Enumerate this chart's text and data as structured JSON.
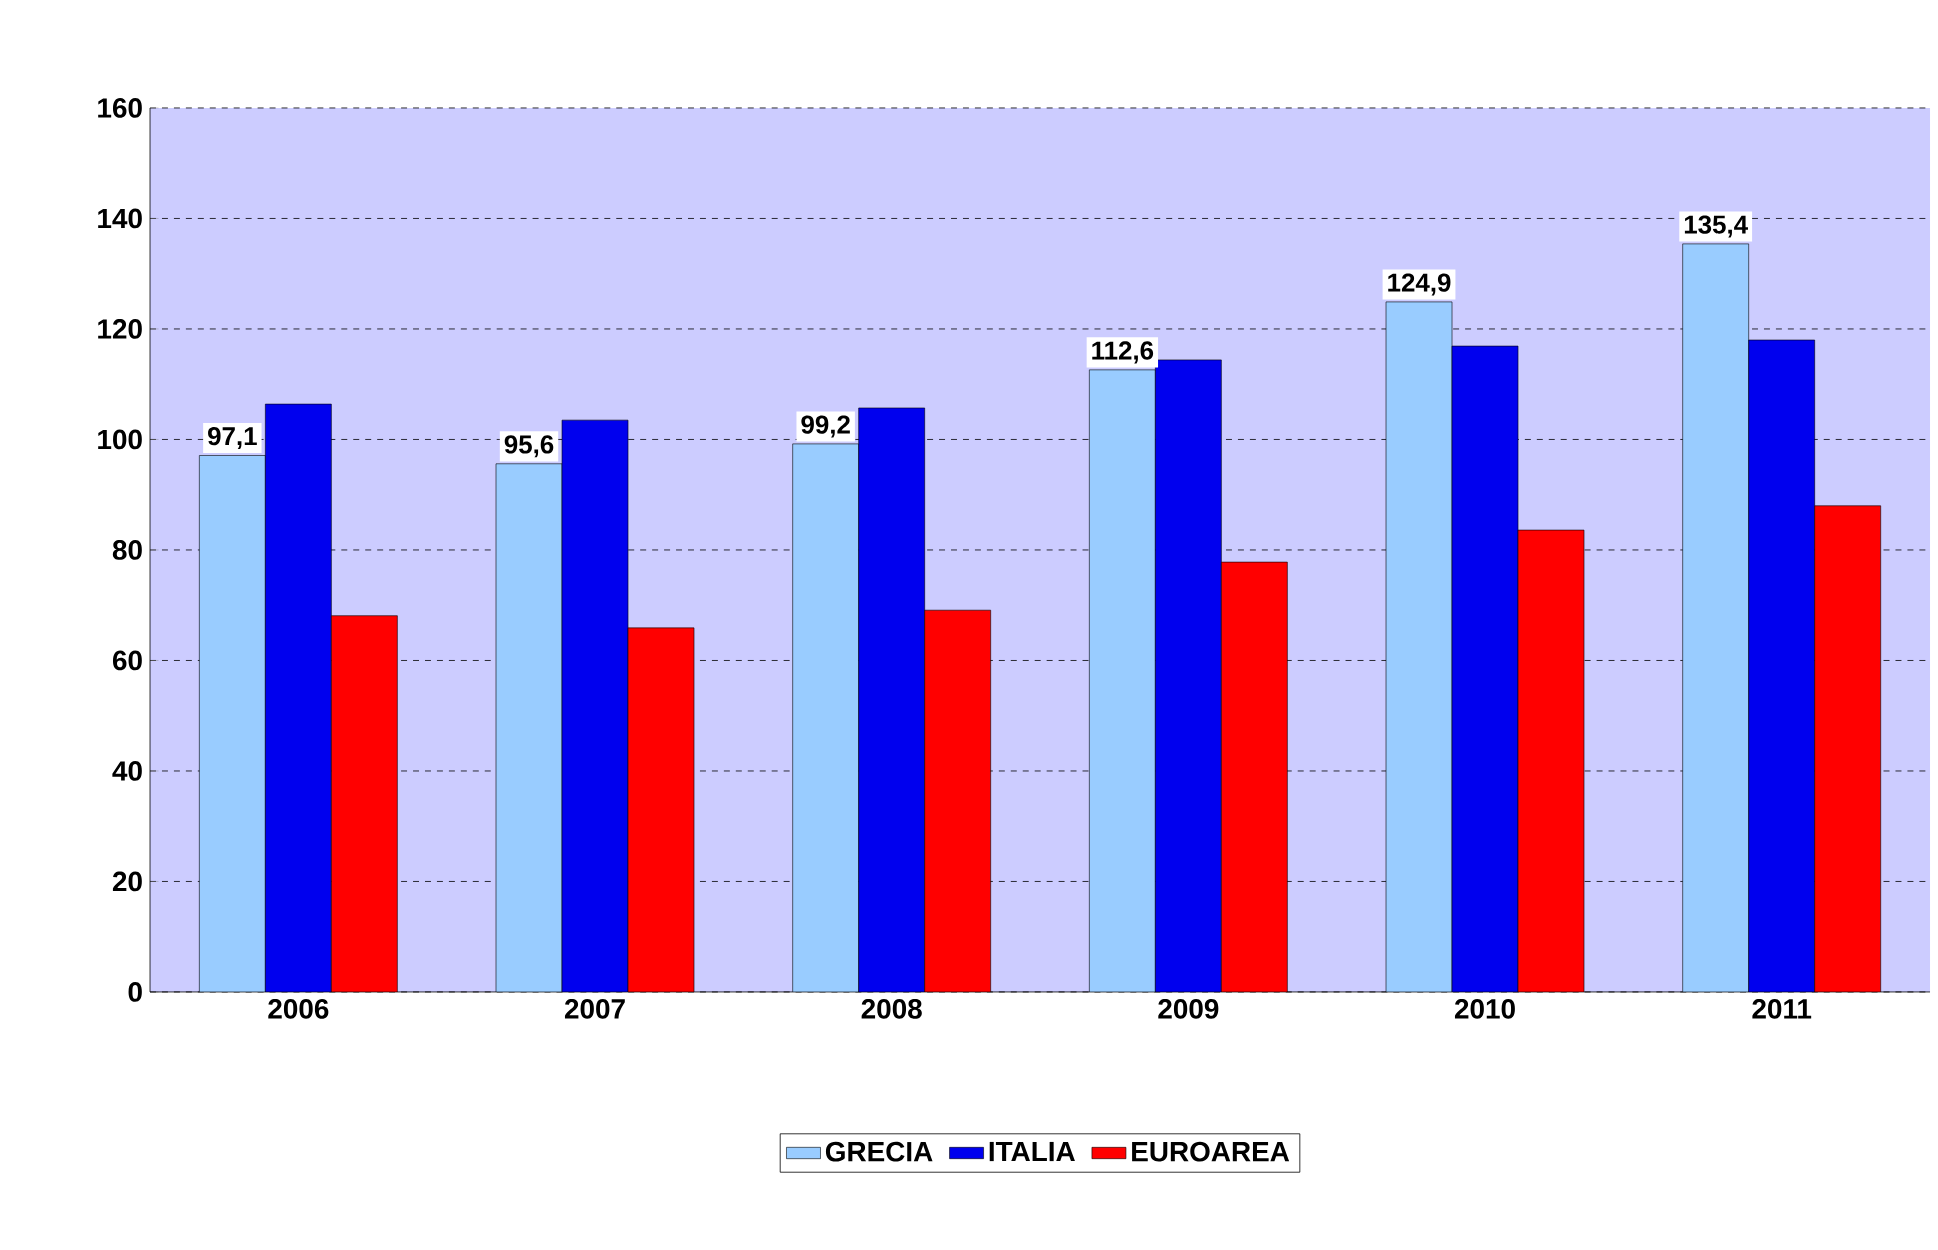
{
  "chart_data": {
    "type": "bar",
    "categories": [
      "2006",
      "2007",
      "2008",
      "2009",
      "2010",
      "2011"
    ],
    "series": [
      {
        "name": "GRECIA",
        "color": "#99ccff",
        "values": [
          97.1,
          95.6,
          99.2,
          112.6,
          124.9,
          135.4
        ],
        "value_labels": [
          "97,1",
          "95,6",
          "99,2",
          "112,6",
          "124,9",
          "135,4"
        ]
      },
      {
        "name": "ITALIA",
        "color": "#0000ee",
        "values": [
          106.4,
          103.5,
          105.7,
          114.4,
          116.9,
          118
        ]
      },
      {
        "name": "EUROAREA",
        "color": "#ff0000",
        "values": [
          68.1,
          65.9,
          69.1,
          77.8,
          83.6,
          88
        ]
      }
    ],
    "ylim": [
      0,
      160
    ],
    "yticks": [
      0,
      20,
      40,
      60,
      80,
      100,
      120,
      140,
      160
    ],
    "grid": "y",
    "legend": "bottom"
  }
}
